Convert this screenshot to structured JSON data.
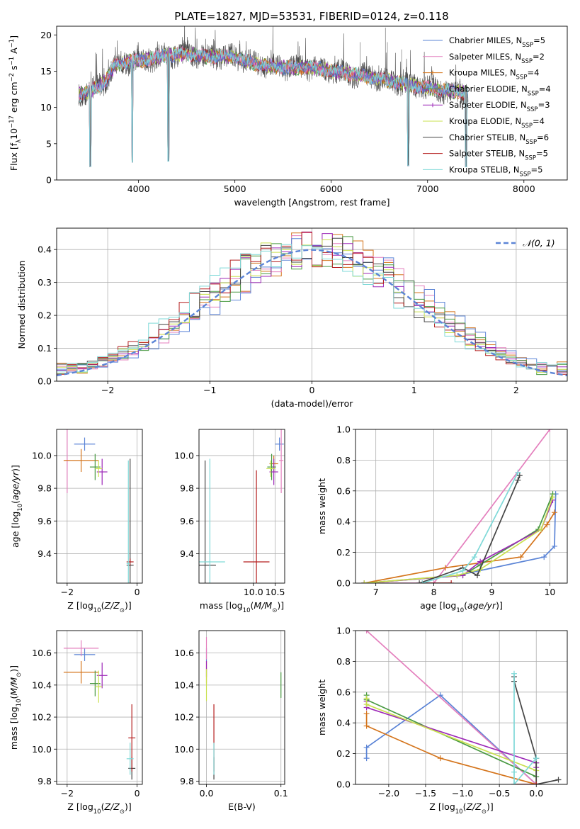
{
  "figure": {
    "title": "PLATE=1827, MJD=53531, FIBERID=0124, z=0.118"
  },
  "series_colors": [
    "#5b84d6",
    "#e47fbd",
    "#d4741b",
    "#4a9a43",
    "#9d29b8",
    "#c9e04f",
    "#444444",
    "#b41f1f",
    "#7fd9d8"
  ],
  "legend": {
    "models": [
      {
        "name": "Chabrier MILES",
        "nssp": "5"
      },
      {
        "name": "Salpeter MILES",
        "nssp": "2"
      },
      {
        "name": "Kroupa MILES",
        "nssp": "4"
      },
      {
        "name": "Chabrier ELODIE",
        "nssp": "4"
      },
      {
        "name": "Salpeter ELODIE",
        "nssp": "3"
      },
      {
        "name": "Kroupa ELODIE",
        "nssp": "4"
      },
      {
        "name": "Chabrier STELIB",
        "nssp": "6"
      },
      {
        "name": "Salpeter STELIB",
        "nssp": "5"
      },
      {
        "name": "Kroupa STELIB",
        "nssp": "5"
      }
    ],
    "nssp_label": "N",
    "nssp_sub": "SSP",
    "normal_label": "𝒩(0, 1)"
  },
  "chart_data": [
    {
      "id": "spectrum",
      "type": "line",
      "xlabel": "wavelength [Angstrom, rest frame]",
      "ylabel": "Flux [f_λ 10^-17 erg cm^-2 s^-1 A^-1]",
      "xlim": [
        3150,
        8450
      ],
      "ylim": [
        0,
        21.2
      ],
      "xticks": [
        4000,
        5000,
        6000,
        7000,
        8000
      ],
      "yticks": [
        0,
        5,
        10,
        15,
        20
      ],
      "continuum": [
        [
          3380,
          11.7
        ],
        [
          3500,
          12.3
        ],
        [
          3650,
          13.5
        ],
        [
          3750,
          15.8
        ],
        [
          3900,
          16.3
        ],
        [
          4100,
          16.6
        ],
        [
          4300,
          17.2
        ],
        [
          4500,
          17.4
        ],
        [
          4700,
          17.0
        ],
        [
          5000,
          17.0
        ],
        [
          5200,
          16.0
        ],
        [
          5500,
          15.5
        ],
        [
          5800,
          15.5
        ],
        [
          6000,
          15.0
        ],
        [
          6300,
          14.4
        ],
        [
          6600,
          13.7
        ],
        [
          6900,
          12.9
        ],
        [
          7100,
          12.5
        ],
        [
          7400,
          12.0
        ]
      ],
      "absorption_lines": [
        3500,
        3934,
        4310,
        6800,
        7400
      ]
    },
    {
      "id": "residuals",
      "type": "histogram",
      "xlabel": "(data-model)/error",
      "ylabel": "Normed distribution",
      "xlim": [
        -2.5,
        2.5
      ],
      "ylim": [
        0,
        0.465
      ],
      "xticks": [
        -2,
        -1,
        0,
        1,
        2
      ],
      "yticks": [
        0.0,
        0.1,
        0.2,
        0.3,
        0.4
      ],
      "bin_width": 0.1,
      "grid": true,
      "legend_position": "top-right"
    },
    {
      "id": "age-vs-z",
      "type": "scatter",
      "xlabel": "Z [log10(Z/Z⊙)]",
      "ylabel": "age [log10(age/yr)]",
      "xlim": [
        -2.3,
        0.15
      ],
      "ylim": [
        9.22,
        10.16
      ],
      "xticks": [
        -2,
        0
      ],
      "yticks": [
        9.4,
        9.6,
        9.8,
        10.0
      ],
      "points": [
        {
          "s": 0,
          "x": -1.5,
          "y": 10.07,
          "ex": 0.3,
          "ey": 0.04
        },
        {
          "s": 1,
          "x": -2.0,
          "y": 9.97,
          "ex": 0.05,
          "ey": 0.2
        },
        {
          "s": 2,
          "x": -1.6,
          "y": 9.97,
          "ex": 0.5,
          "ey": 0.07
        },
        {
          "s": 3,
          "x": -1.2,
          "y": 9.93,
          "ex": 0.15,
          "ey": 0.08
        },
        {
          "s": 4,
          "x": -1.0,
          "y": 9.9,
          "ex": 0.15,
          "ey": 0.08
        },
        {
          "s": 5,
          "x": -1.1,
          "y": 9.92,
          "ex": 0.1,
          "ey": 0.05
        },
        {
          "s": 6,
          "x": -0.2,
          "y": 9.33,
          "ex": 0.1,
          "ey": 0.65
        },
        {
          "s": 7,
          "x": -0.2,
          "y": 9.35,
          "ex": 0.1,
          "ey": 0.02
        },
        {
          "s": 8,
          "x": -0.25,
          "y": 9.34,
          "ex": 0.05,
          "ey": 0.63
        }
      ]
    },
    {
      "id": "age-vs-mass",
      "type": "scatter",
      "xlabel": "mass [log10(M/M⊙)]",
      "ylabel": "",
      "xlim": [
        8.75,
        10.72
      ],
      "ylim": [
        9.22,
        10.16
      ],
      "xticks": [
        10.0,
        10.5
      ],
      "yticks": [
        9.4,
        9.6,
        9.8,
        10.0
      ],
      "points": [
        {
          "s": 0,
          "x": 10.6,
          "y": 10.07,
          "ex": 0.1,
          "ey": 0.04
        },
        {
          "s": 1,
          "x": 10.64,
          "y": 9.97,
          "ex": 0.05,
          "ey": 0.2
        },
        {
          "s": 2,
          "x": 10.47,
          "y": 9.95,
          "ex": 0.1,
          "ey": 0.05
        },
        {
          "s": 3,
          "x": 10.42,
          "y": 9.93,
          "ex": 0.1,
          "ey": 0.08
        },
        {
          "s": 4,
          "x": 10.47,
          "y": 9.9,
          "ex": 0.1,
          "ey": 0.08
        },
        {
          "s": 5,
          "x": 10.4,
          "y": 9.92,
          "ex": 0.1,
          "ey": 0.05
        },
        {
          "s": 6,
          "x": 8.89,
          "y": 9.33,
          "ex": 0.25,
          "ey": 0.64
        },
        {
          "s": 7,
          "x": 10.07,
          "y": 9.35,
          "ex": 0.3,
          "ey": 0.56
        },
        {
          "s": 8,
          "x": 9.0,
          "y": 9.35,
          "ex": 0.35,
          "ey": 0.63
        }
      ]
    },
    {
      "id": "weight-vs-age",
      "type": "line",
      "xlabel": "age [log10(age/yr)]",
      "ylabel": "mass weight",
      "xlim": [
        6.65,
        10.3
      ],
      "ylim": [
        0,
        1.0
      ],
      "xticks": [
        7,
        8,
        9,
        10
      ],
      "yticks": [
        0.0,
        0.2,
        0.4,
        0.6,
        0.8,
        1.0
      ],
      "series": [
        {
          "s": 0,
          "x": [
            6.8,
            8.4,
            9.9,
            10.08,
            10.1
          ],
          "y": [
            0.0,
            0.05,
            0.17,
            0.24,
            0.58
          ]
        },
        {
          "s": 1,
          "x": [
            6.8,
            8.0,
            10.0
          ],
          "y": [
            0.0,
            0.0,
            1.0
          ]
        },
        {
          "s": 2,
          "x": [
            6.8,
            8.2,
            9.5,
            9.95,
            10.08
          ],
          "y": [
            0.0,
            0.1,
            0.17,
            0.38,
            0.46
          ]
        },
        {
          "s": 3,
          "x": [
            6.8,
            8.5,
            8.8,
            9.8,
            10.05
          ],
          "y": [
            0.0,
            0.05,
            0.12,
            0.35,
            0.58
          ]
        },
        {
          "s": 4,
          "x": [
            6.8,
            8.5,
            8.8,
            9.85,
            10.05
          ],
          "y": [
            0.0,
            0.05,
            0.14,
            0.35,
            0.54
          ]
        },
        {
          "s": 5,
          "x": [
            6.8,
            8.4,
            8.8,
            9.85,
            10.05
          ],
          "y": [
            0.0,
            0.05,
            0.09,
            0.35,
            0.56
          ]
        },
        {
          "s": 6,
          "x": [
            7.75,
            8.5,
            8.75,
            9.45,
            9.48
          ],
          "y": [
            0.0,
            0.1,
            0.05,
            0.67,
            0.7
          ]
        },
        {
          "s": 7,
          "x": [
            7.8,
            8.3
          ],
          "y": [
            0.0,
            0.0
          ]
        },
        {
          "s": 8,
          "x": [
            7.8,
            8.5,
            8.7,
            9.45
          ],
          "y": [
            0.0,
            0.08,
            0.17,
            0.72
          ]
        }
      ]
    },
    {
      "id": "mass-vs-z",
      "type": "scatter",
      "xlabel": "Z [log10(Z/Z⊙)]",
      "ylabel": "mass [log10(M/M⊙)]",
      "xlim": [
        -2.3,
        0.15
      ],
      "ylim": [
        9.78,
        10.74
      ],
      "xticks": [
        -2,
        0
      ],
      "yticks": [
        9.8,
        10.0,
        10.2,
        10.4,
        10.6
      ],
      "points": [
        {
          "s": 0,
          "x": -1.5,
          "y": 10.59,
          "ex": 0.3,
          "ey": 0.04
        },
        {
          "s": 1,
          "x": -1.6,
          "y": 10.63,
          "ex": 0.5,
          "ey": 0.05
        },
        {
          "s": 2,
          "x": -1.6,
          "y": 10.48,
          "ex": 0.5,
          "ey": 0.07
        },
        {
          "s": 3,
          "x": -1.2,
          "y": 10.41,
          "ex": 0.15,
          "ey": 0.08
        },
        {
          "s": 4,
          "x": -1.0,
          "y": 10.46,
          "ex": 0.15,
          "ey": 0.08
        },
        {
          "s": 5,
          "x": -1.1,
          "y": 10.39,
          "ex": 0.1,
          "ey": 0.1
        },
        {
          "s": 6,
          "x": -0.15,
          "y": 9.88,
          "ex": 0.1,
          "ey": 0.07
        },
        {
          "s": 7,
          "x": -0.15,
          "y": 10.07,
          "ex": 0.1,
          "ey": 0.21
        },
        {
          "s": 8,
          "x": -0.2,
          "y": 9.94,
          "ex": 0.1,
          "ey": 0.1
        }
      ]
    },
    {
      "id": "mass-vs-ebv",
      "type": "scatter",
      "xlabel": "E(B-V)",
      "ylabel": "",
      "xlim": [
        -0.01,
        0.105
      ],
      "ylim": [
        9.78,
        10.74
      ],
      "xticks": [
        0.0,
        0.1
      ],
      "yticks": [
        9.8,
        10.0,
        10.2,
        10.4,
        10.6
      ],
      "points": [
        {
          "s": 0,
          "x": 0.0,
          "y": 10.59,
          "ex": 0,
          "ey": 0.04
        },
        {
          "s": 1,
          "x": 0.0,
          "y": 10.63,
          "ex": 0,
          "ey": 0.07
        },
        {
          "s": 2,
          "x": 0.0,
          "y": 10.48,
          "ex": 0,
          "ey": 0.07
        },
        {
          "s": 3,
          "x": 0.1,
          "y": 10.4,
          "ex": 0,
          "ey": 0.08
        },
        {
          "s": 4,
          "x": 0.0,
          "y": 10.5,
          "ex": 0,
          "ey": 0.05
        },
        {
          "s": 5,
          "x": 0.0,
          "y": 10.4,
          "ex": 0,
          "ey": 0.1
        },
        {
          "s": 6,
          "x": 0.01,
          "y": 9.88,
          "ex": 0,
          "ey": 0.07
        },
        {
          "s": 7,
          "x": 0.01,
          "y": 10.07,
          "ex": 0,
          "ey": 0.21
        },
        {
          "s": 8,
          "x": 0.01,
          "y": 9.94,
          "ex": 0,
          "ey": 0.1
        }
      ]
    },
    {
      "id": "weight-vs-z",
      "type": "line",
      "xlabel": "Z [log10(Z/Z⊙)]",
      "ylabel": "mass weight",
      "xlim": [
        -2.45,
        0.42
      ],
      "ylim": [
        0,
        1.0
      ],
      "xticks": [
        -2.0,
        -1.5,
        -1.0,
        -0.5,
        0.0
      ],
      "yticks": [
        0.0,
        0.2,
        0.4,
        0.6,
        0.8,
        1.0
      ],
      "series": [
        {
          "s": 0,
          "x": [
            -2.3,
            -2.3,
            -1.3,
            0.0,
            0.0
          ],
          "y": [
            0.17,
            0.24,
            0.58,
            0.0,
            0.0
          ]
        },
        {
          "s": 1,
          "x": [
            -2.3,
            0.0
          ],
          "y": [
            1.0,
            0.0
          ]
        },
        {
          "s": 2,
          "x": [
            -2.3,
            -2.3,
            -1.3,
            0.0,
            0.0
          ],
          "y": [
            0.46,
            0.38,
            0.17,
            0.0,
            0.0
          ]
        },
        {
          "s": 3,
          "x": [
            -2.3,
            -2.3,
            0.0,
            0.0
          ],
          "y": [
            0.58,
            0.55,
            0.05,
            0.14
          ]
        },
        {
          "s": 4,
          "x": [
            -2.3,
            -2.3,
            0.0,
            0.0
          ],
          "y": [
            0.54,
            0.5,
            0.14,
            0.11
          ]
        },
        {
          "s": 5,
          "x": [
            -2.3,
            -2.3,
            0.0,
            0.0
          ],
          "y": [
            0.56,
            0.52,
            0.09,
            0.0
          ]
        },
        {
          "s": 6,
          "x": [
            -0.3,
            -0.3,
            0.0,
            0.0,
            0.3
          ],
          "y": [
            0.7,
            0.67,
            0.17,
            0.0,
            0.03
          ]
        },
        {
          "s": 7,
          "x": [
            -0.3,
            0.0
          ],
          "y": [
            0.0,
            0.0
          ]
        },
        {
          "s": 8,
          "x": [
            -0.3,
            -0.3,
            -0.3,
            0.0
          ],
          "y": [
            0.72,
            0.08,
            0.0,
            0.17
          ]
        }
      ]
    }
  ]
}
